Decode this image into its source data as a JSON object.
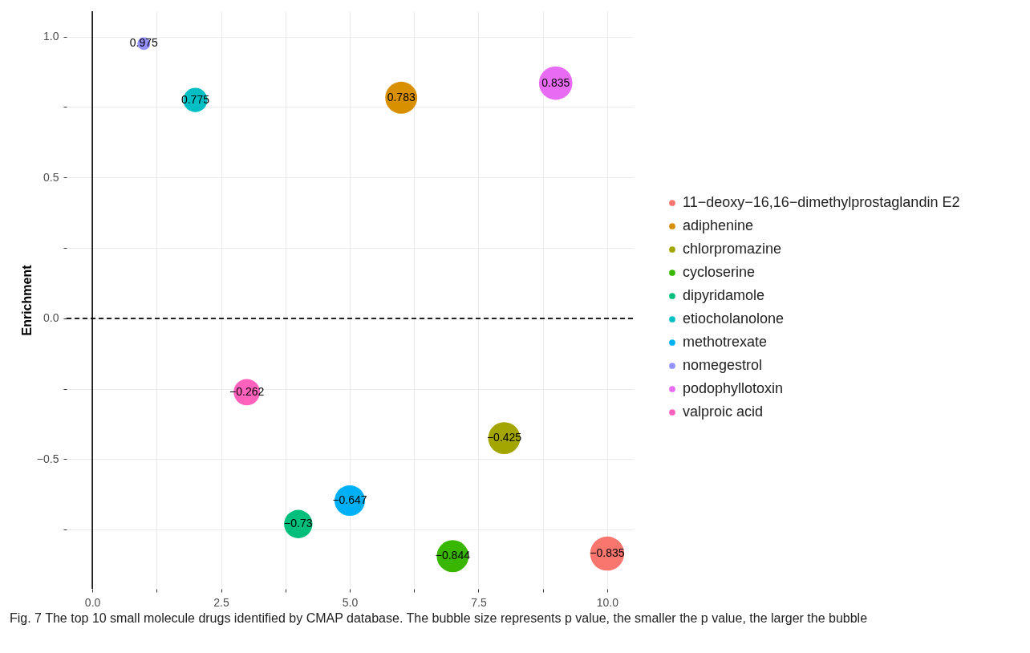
{
  "chart_data": {
    "type": "bubble",
    "ylabel": "Enrichment",
    "legend": "right",
    "marker": "circle",
    "grid": true,
    "data_labels": true,
    "xlim": [
      -0.5,
      10.5
    ],
    "ylim": [
      -0.96,
      1.09
    ],
    "xticks": [
      {
        "value": 0,
        "label": "0.0"
      },
      {
        "value": 1.25,
        "label": null
      },
      {
        "value": 2.5,
        "label": "2.5"
      },
      {
        "value": 3.75,
        "label": null
      },
      {
        "value": 5,
        "label": "5.0"
      },
      {
        "value": 6.25,
        "label": null
      },
      {
        "value": 7.5,
        "label": "7.5"
      },
      {
        "value": 8.75,
        "label": null
      },
      {
        "value": 10,
        "label": "10.0"
      }
    ],
    "yticks": [
      {
        "value": -0.75,
        "label": null
      },
      {
        "value": -0.5,
        "label": "−0.5"
      },
      {
        "value": -0.25,
        "label": null
      },
      {
        "value": 0,
        "label": "0.0"
      },
      {
        "value": 0.25,
        "label": null
      },
      {
        "value": 0.5,
        "label": "0.5"
      },
      {
        "value": 0.75,
        "label": null
      },
      {
        "value": 1,
        "label": "1.0"
      }
    ],
    "series": [
      {
        "name": "11−deoxy−16,16−dimethylprostaglandin E2",
        "color": "#f8766d",
        "x": [
          10
        ],
        "values": [
          -0.835
        ],
        "sizes": [
          1
        ]
      },
      {
        "name": "adiphenine",
        "color": "#d89000",
        "x": [
          6
        ],
        "values": [
          0.783
        ],
        "sizes": [
          0.88
        ]
      },
      {
        "name": "chlorpromazine",
        "color": "#a3a500",
        "x": [
          8
        ],
        "values": [
          -0.425
        ],
        "sizes": [
          0.88
        ]
      },
      {
        "name": "cycloserine",
        "color": "#39b600",
        "x": [
          7
        ],
        "values": [
          -0.844
        ],
        "sizes": [
          0.88
        ]
      },
      {
        "name": "dipyridamole",
        "color": "#00bf7d",
        "x": [
          4
        ],
        "values": [
          -0.73
        ],
        "sizes": [
          0.69
        ]
      },
      {
        "name": "etiocholanolone",
        "color": "#00bfc4",
        "x": [
          2
        ],
        "values": [
          0.775
        ],
        "sizes": [
          0.5
        ]
      },
      {
        "name": "methotrexate",
        "color": "#00b0f6",
        "x": [
          5
        ],
        "values": [
          -0.647
        ],
        "sizes": [
          0.8
        ]
      },
      {
        "name": "nomegestrol",
        "color": "#9590ff",
        "x": [
          1
        ],
        "values": [
          0.975
        ],
        "sizes": [
          0.14
        ]
      },
      {
        "name": "podophyllotoxin",
        "color": "#e76bf3",
        "x": [
          9
        ],
        "values": [
          0.835
        ],
        "sizes": [
          0.96
        ]
      },
      {
        "name": "valproic acid",
        "color": "#ff62bc",
        "x": [
          3
        ],
        "values": [
          -0.262
        ],
        "sizes": [
          0.59
        ]
      }
    ],
    "ref_lines": [
      {
        "axis": "x",
        "value": 0,
        "label": null,
        "color": "#000000",
        "line_style": "solid"
      },
      {
        "axis": "y",
        "value": 0,
        "label": null,
        "color": "#000000",
        "line_style": "dashed"
      }
    ],
    "annotations": [
      "Fig. 7 The top 10 small molecule drugs identified by CMAP database. The bubble size represents p value, the smaller the p value, the larger the bubble"
    ]
  }
}
